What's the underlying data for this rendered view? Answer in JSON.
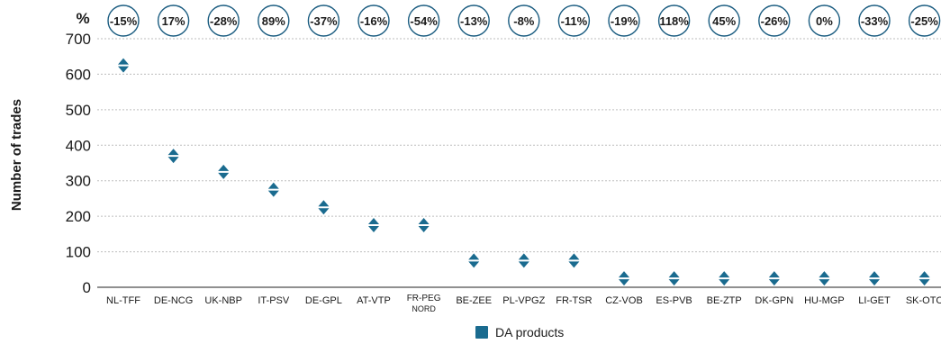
{
  "chart_data": {
    "type": "scatter",
    "categories": [
      "NL-TFF",
      "DE-NCG",
      "UK-NBP",
      "IT-PSV",
      "DE-GPL",
      "AT-VTP",
      "FR-PEG NORD",
      "BE-ZEE",
      "PL-VPGZ",
      "FR-TSR",
      "CZ-VOB",
      "ES-PVB",
      "BE-ZTP",
      "DK-GPN",
      "HU-MGP",
      "LI-GET",
      "SK-OTC"
    ],
    "series": [
      {
        "name": "DA products",
        "values": [
          625,
          370,
          325,
          275,
          225,
          175,
          175,
          75,
          75,
          75,
          25,
          25,
          25,
          25,
          25,
          25,
          25
        ]
      }
    ],
    "pct_changes": [
      "-15%",
      "17%",
      "-28%",
      "89%",
      "-37%",
      "-16%",
      "-54%",
      "-13%",
      "-8%",
      "-11%",
      "-19%",
      "118%",
      "45%",
      "-26%",
      "0%",
      "-33%",
      "-25%"
    ],
    "pct_header": "%",
    "ylabel": "Number of trades",
    "xlabel": "",
    "ylim": [
      0,
      700
    ],
    "yticks": [
      0,
      100,
      200,
      300,
      400,
      500,
      600,
      700
    ],
    "grid": true,
    "legend_position": "bottom-center",
    "colors": {
      "marker": "#1a6b8f",
      "circle": "#1a5c80",
      "grid": "#bdbdbd",
      "axis": "#4d4d4d"
    }
  }
}
